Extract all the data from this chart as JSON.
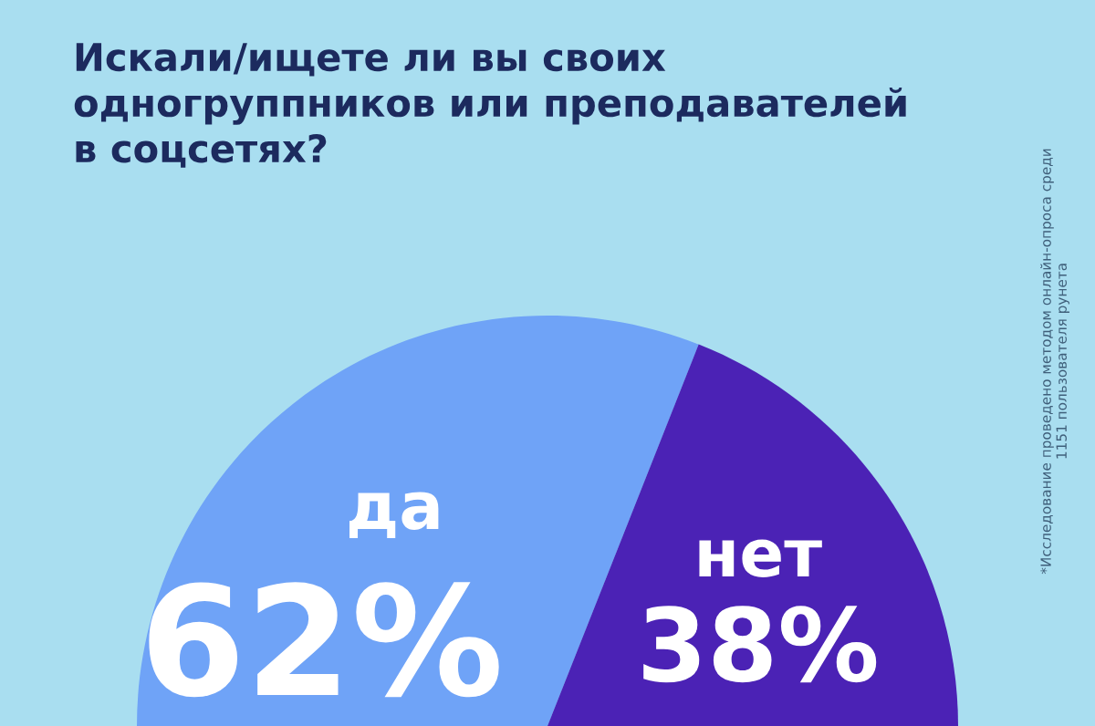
{
  "chart_data": {
    "type": "pie",
    "title": "Искали/ищете ли вы своих\nодногруппников или преподавателей\nв соцсетях?",
    "categories": [
      "да",
      "нет"
    ],
    "values": [
      62,
      38
    ],
    "colors": [
      "#6fa3f7",
      "#4b22b5"
    ],
    "value_labels": [
      "62%",
      "38%"
    ],
    "annotations": [
      "*Исследование проведено методом онлайн-опроса среди\n1151 пользователя рунета"
    ]
  }
}
